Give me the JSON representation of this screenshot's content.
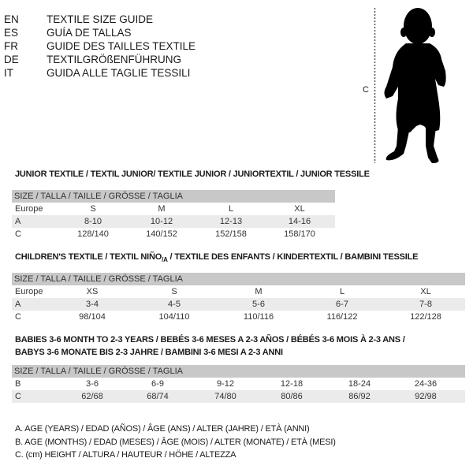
{
  "languages": [
    {
      "code": "EN",
      "text": "TEXTILE SIZE GUIDE"
    },
    {
      "code": "ES",
      "text": "GUÍA DE TALLAS"
    },
    {
      "code": "FR",
      "text": "GUIDE DES TAILLES TEXTILE"
    },
    {
      "code": "DE",
      "text": "TEXTILGRÖßENFÜHRUNG"
    },
    {
      "code": "IT",
      "text": "GUIDA ALLE TAGLIE TESSILI"
    }
  ],
  "figure": {
    "label": "C"
  },
  "junior": {
    "title": "JUNIOR TEXTILE / TEXTIL JUNIOR/ TEXTILE JUNIOR / JUNIORTEXTIL / JUNIOR TESSILE",
    "header": "SIZE / TALLA / TAILLE / GRÖSSE / TAGLIA",
    "rows": [
      {
        "label": "Europe",
        "cells": [
          "S",
          "M",
          "L",
          "XL"
        ]
      },
      {
        "label": "A",
        "cells": [
          "8-10",
          "10-12",
          "12-13",
          "14-16"
        ]
      },
      {
        "label": "C",
        "cells": [
          "128/140",
          "140/152",
          "152/158",
          "158/170"
        ]
      }
    ]
  },
  "children": {
    "title": "CHILDREN'S TEXTILE / TEXTIL NIÑO",
    "title_sub": "/A",
    "title_rest": " / TEXTILE DES ENFANTS / KINDERTEXTIL / BAMBINI TESSILE",
    "header": "SIZE / TALLA / TAILLE / GRÖSSE / TAGLIA",
    "rows": [
      {
        "label": "Europe",
        "cells": [
          "XS",
          "S",
          "M",
          "L",
          "XL"
        ]
      },
      {
        "label": "A",
        "cells": [
          "3-4",
          "4-5",
          "5-6",
          "6-7",
          "7-8"
        ]
      },
      {
        "label": "C",
        "cells": [
          "98/104",
          "104/110",
          "110/116",
          "116/122",
          "122/128"
        ]
      }
    ]
  },
  "babies": {
    "title_line1": "BABIES 3-6 MONTH TO 2-3 YEARS / BEBÉS 3-6 MESES A 2-3 AÑOS / BÉBÉS 3-6 MOIS À 2-3 ANS /",
    "title_line2": "BABYS 3-6 MONATE BIS 2-3 JAHRE / BAMBINI 3-6 MESI A 2-3 ANNI",
    "header": "SIZE / TALLA / TAILLE / GRÖSSE / TAGLIA",
    "rows": [
      {
        "label": "B",
        "cells": [
          "3-6",
          "6-9",
          "9-12",
          "12-18",
          "18-24",
          "24-36"
        ]
      },
      {
        "label": "C",
        "cells": [
          "62/68",
          "68/74",
          "74/80",
          "80/86",
          "86/92",
          "92/98"
        ]
      }
    ]
  },
  "legend": [
    "A. AGE (YEARS) / EDAD (AÑOS) / ÂGE (ANS) / ALTER (JAHRE) / ETÀ (ANNI)",
    "B. AGE (MONTHS) / EDAD (MESES) / ÂGE (MOIS) / ALTER (MONATE) / ETÀ (MESI)",
    "C. (cm) HEIGHT / ALTURA / HAUTEUR / HÖHE / ALTEZZA"
  ]
}
